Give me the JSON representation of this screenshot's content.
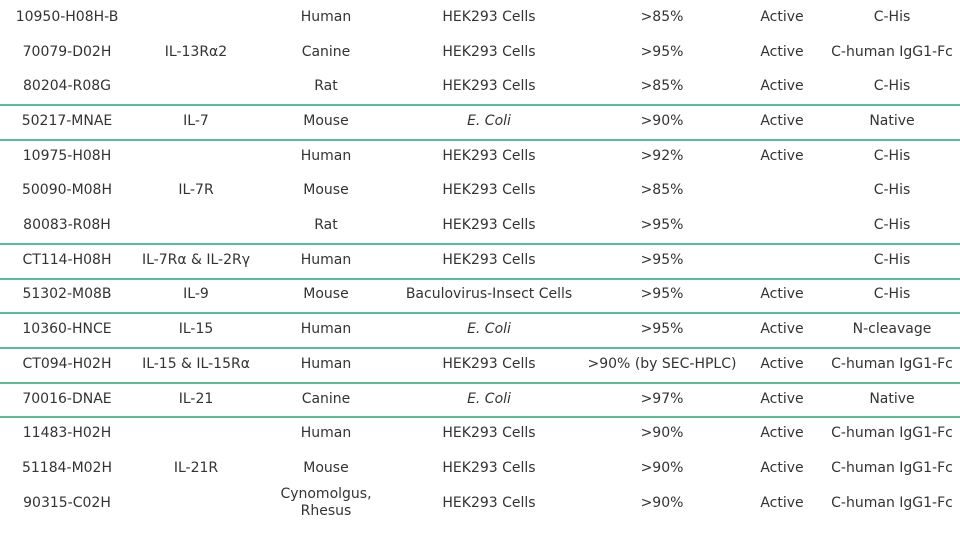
{
  "accent_color": "#5bbd96",
  "groups": [
    {
      "target": "",
      "rows": [
        [
          "10950-H08H-B",
          "Human",
          "HEK293 Cells",
          ">85%",
          "Active",
          "C-His"
        ],
        [
          "70079-D02H",
          "Canine",
          "HEK293 Cells",
          ">95%",
          "Active",
          "C-human IgG1-Fc"
        ],
        [
          "80204-R08G",
          "Rat",
          "HEK293 Cells",
          ">85%",
          "Active",
          "C-His"
        ]
      ],
      "target_text": "IL-13Rα2"
    },
    {
      "target_text": "IL-7",
      "rows": [
        [
          "50217-MNAE",
          "Mouse",
          "E. Coli",
          ">90%",
          "Active",
          "Native"
        ]
      ]
    },
    {
      "target_text": "IL-7R",
      "rows": [
        [
          "10975-H08H",
          "Human",
          "HEK293 Cells",
          ">92%",
          "Active",
          "C-His"
        ],
        [
          "50090-M08H",
          "Mouse",
          "HEK293 Cells",
          ">85%",
          "",
          "C-His"
        ],
        [
          "80083-R08H",
          "Rat",
          "HEK293 Cells",
          ">95%",
          "",
          "C-His"
        ]
      ]
    },
    {
      "target_text": "IL-7Rα & IL-2Rγ",
      "rows": [
        [
          "CT114-H08H",
          "Human",
          "HEK293 Cells",
          ">95%",
          "",
          "C-His"
        ]
      ]
    },
    {
      "target_text": "IL-9",
      "rows": [
        [
          "51302-M08B",
          "Mouse",
          "Baculovirus-Insect Cells",
          ">95%",
          "Active",
          "C-His"
        ]
      ]
    },
    {
      "target_text": "IL-15",
      "rows": [
        [
          "10360-HNCE",
          "Human",
          "E. Coli",
          ">95%",
          "Active",
          "N-cleavage"
        ]
      ]
    },
    {
      "target_text": "IL-15 & IL-15Rα",
      "rows": [
        [
          "CT094-H02H",
          "Human",
          "HEK293 Cells",
          ">90% (by SEC-HPLC)",
          "Active",
          "C-human IgG1-Fc"
        ]
      ]
    },
    {
      "target_text": "IL-21",
      "rows": [
        [
          "70016-DNAE",
          "Canine",
          "E. Coli",
          ">97%",
          "Active",
          "Native"
        ]
      ]
    },
    {
      "target_text": "IL-21R",
      "rows": [
        [
          "11483-H02H",
          "Human",
          "HEK293 Cells",
          ">90%",
          "Active",
          "C-human IgG1-Fc"
        ],
        [
          "51184-M02H",
          "Mouse",
          "HEK293 Cells",
          ">90%",
          "Active",
          "C-human IgG1-Fc"
        ],
        [
          "90315-C02H",
          "Cynomolgus, Rhesus",
          "HEK293 Cells",
          ">90%",
          "Active",
          "C-human IgG1-Fc"
        ]
      ]
    }
  ]
}
